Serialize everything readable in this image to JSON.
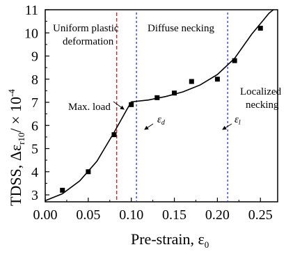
{
  "chart_data": {
    "type": "scatter",
    "xlabel": "Pre-strain, ε",
    "xlabel_sub": "0",
    "ylabel": "TDSS, Δε",
    "ylabel_sub": "r10",
    "ylabel_unit": "/ × 10",
    "ylabel_exp": "-4",
    "xlim": [
      0.0,
      0.27
    ],
    "ylim": [
      2.7,
      11.0
    ],
    "x_ticks": [
      "0.00",
      "0.05",
      "0.10",
      "0.15",
      "0.20",
      "0.25"
    ],
    "x_tick_values": [
      0.0,
      0.05,
      0.1,
      0.15,
      0.2,
      0.25
    ],
    "y_ticks": [
      "3",
      "4",
      "5",
      "6",
      "7",
      "8",
      "9",
      "10",
      "11"
    ],
    "y_tick_values": [
      3,
      4,
      5,
      6,
      7,
      8,
      9,
      10,
      11
    ],
    "series": [
      {
        "marker": "square",
        "x": [
          0.02,
          0.05,
          0.08,
          0.1,
          0.13,
          0.15,
          0.17,
          0.2,
          0.22,
          0.25
        ],
        "y": [
          3.2,
          4.0,
          5.6,
          6.9,
          7.2,
          7.4,
          7.9,
          8.0,
          8.8,
          10.2
        ]
      }
    ],
    "fit_curve": {
      "x": [
        0.0,
        0.02,
        0.04,
        0.06,
        0.08,
        0.095,
        0.1,
        0.12,
        0.14,
        0.16,
        0.18,
        0.2,
        0.22,
        0.24,
        0.26,
        0.265
      ],
      "y": [
        2.75,
        3.05,
        3.6,
        4.45,
        5.7,
        6.7,
        7.02,
        7.1,
        7.25,
        7.45,
        7.75,
        8.2,
        8.9,
        9.95,
        10.85,
        11.0
      ]
    },
    "vertical_lines": [
      {
        "x": 0.083,
        "color": "#e02020",
        "style": "dashed"
      },
      {
        "x": 0.106,
        "color": "#3040ff",
        "style": "dotted"
      },
      {
        "x": 0.212,
        "color": "#3040ff",
        "style": "dotted"
      }
    ],
    "annotations": {
      "region1_line1": "Uniform plastic",
      "region1_line2": "deformation",
      "region2": "Diffuse necking",
      "region3_line1": "Localized",
      "region3_line2": "necking",
      "max_load": "Max. load",
      "eps_d": "ε",
      "eps_d_sub": "d",
      "eps_l": "ε",
      "eps_l_sub": "l"
    },
    "colors": {
      "axis": "#000000",
      "curve": "#000000",
      "marker": "#000000"
    }
  }
}
